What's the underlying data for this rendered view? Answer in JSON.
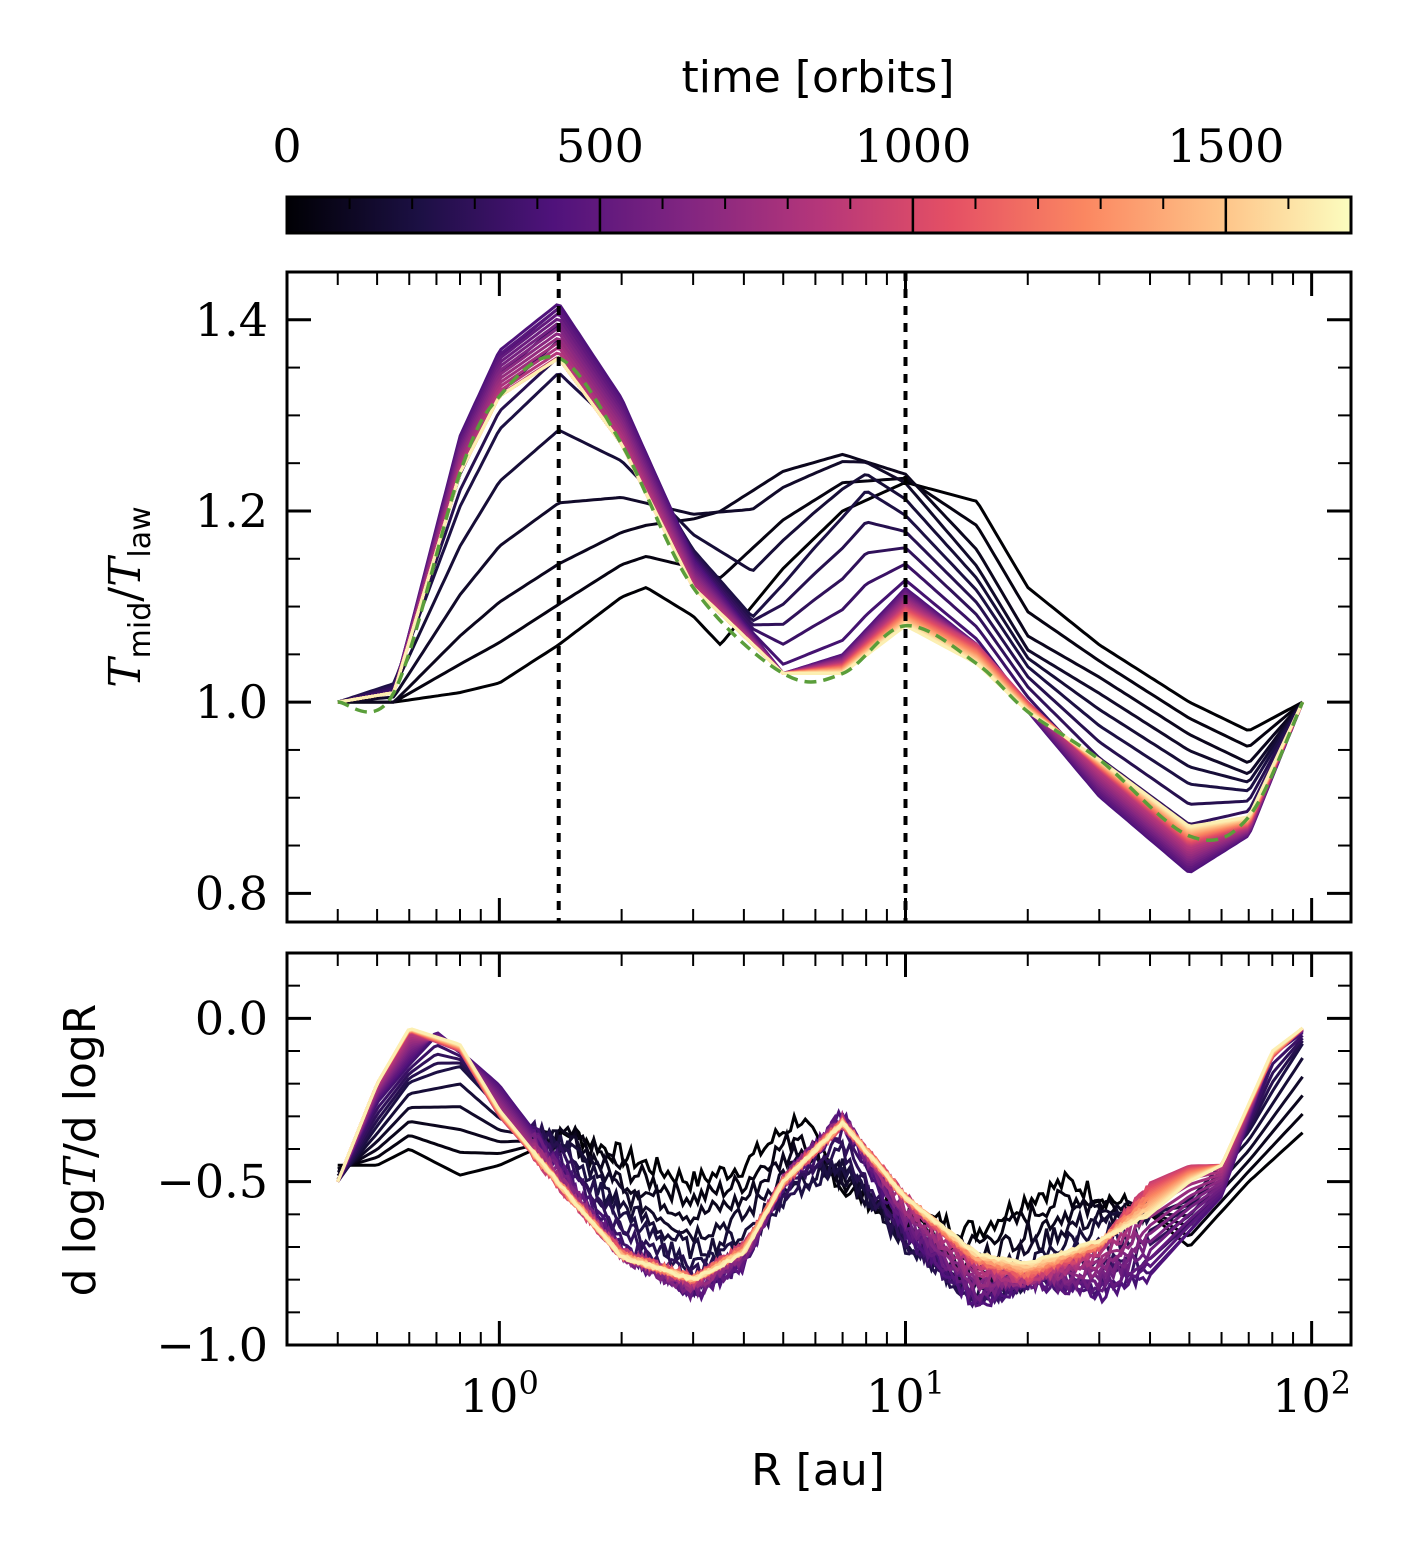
{
  "colorbar": {
    "label": "time [orbits]",
    "ticks": [
      0,
      500,
      1000,
      1500
    ],
    "range": [
      0,
      1700
    ],
    "colormap": "magma",
    "colormap_stops": [
      "#000004",
      "#1c1044",
      "#4f127b",
      "#812581",
      "#b5367a",
      "#e55064",
      "#fb8761",
      "#fec287",
      "#fcfdbf"
    ]
  },
  "guides": {
    "vlines_au": [
      1.4,
      10.0
    ],
    "reference_curve_color": "#5a9e3a"
  },
  "chart_data": [
    {
      "type": "line",
      "panel": "top",
      "title": "",
      "xlabel": "",
      "ylabel_parts": {
        "main": "T",
        "sub1": "mid",
        "slash": "/",
        "main2": "T",
        "sub2": "law"
      },
      "xscale": "log",
      "xlim": [
        0.3,
        125
      ],
      "ylim": [
        0.77,
        1.45
      ],
      "yticks": [
        "0.8",
        "1.0",
        "1.2",
        "1.4"
      ],
      "ytick_values": [
        0.8,
        1.0,
        1.2,
        1.4
      ],
      "n_curves": 40,
      "series": [
        {
          "name": "t=0",
          "time": 0,
          "x": [
            0.4,
            0.55,
            0.8,
            1.0,
            1.4,
            2.0,
            2.3,
            3.0,
            3.5,
            5.0,
            7.0,
            10,
            15,
            20,
            30,
            50,
            70,
            95
          ],
          "y": [
            1.0,
            1.0,
            1.01,
            1.02,
            1.06,
            1.11,
            1.12,
            1.09,
            1.06,
            1.14,
            1.2,
            1.23,
            1.21,
            1.12,
            1.06,
            1.0,
            0.97,
            1.0
          ]
        },
        {
          "name": "t=100",
          "time": 100,
          "x": [
            0.4,
            0.55,
            0.8,
            1.0,
            1.4,
            2.0,
            3.0,
            5.0,
            7.0,
            10,
            15,
            20,
            30,
            50,
            70,
            95
          ],
          "y": [
            1.0,
            1.0,
            1.08,
            1.12,
            1.16,
            1.19,
            1.21,
            1.26,
            1.27,
            1.24,
            1.15,
            1.06,
            1.02,
            0.96,
            0.93,
            1.0
          ]
        },
        {
          "name": "t=200",
          "time": 200,
          "x": [
            0.4,
            0.55,
            0.8,
            1.0,
            1.4,
            2.0,
            3.0,
            4.2,
            6.0,
            8.0,
            10,
            15,
            20,
            30,
            50,
            70,
            95
          ],
          "y": [
            1.0,
            1.02,
            1.2,
            1.28,
            1.34,
            1.28,
            1.16,
            1.09,
            1.17,
            1.23,
            1.2,
            1.12,
            1.04,
            0.98,
            0.92,
            0.91,
            1.0
          ]
        },
        {
          "name": "t=400",
          "time": 400,
          "x": [
            0.4,
            0.55,
            0.8,
            1.0,
            1.4,
            2.0,
            3.0,
            5.0,
            7.0,
            10,
            15,
            20,
            30,
            50,
            70,
            95
          ],
          "y": [
            1.0,
            1.01,
            1.28,
            1.37,
            1.42,
            1.32,
            1.15,
            1.03,
            1.05,
            1.12,
            1.06,
            0.99,
            0.9,
            0.82,
            0.86,
            1.0
          ]
        },
        {
          "name": "t=900",
          "time": 900,
          "x": [
            0.4,
            0.55,
            0.8,
            1.0,
            1.4,
            2.0,
            3.0,
            5.0,
            7.0,
            10,
            15,
            20,
            30,
            50,
            70,
            95
          ],
          "y": [
            1.0,
            1.01,
            1.24,
            1.32,
            1.36,
            1.27,
            1.12,
            1.03,
            1.04,
            1.1,
            1.06,
            1.0,
            0.93,
            0.85,
            0.87,
            1.0
          ]
        },
        {
          "name": "t=1650",
          "time": 1650,
          "x": [
            0.4,
            0.55,
            0.8,
            1.0,
            1.4,
            2.0,
            3.0,
            5.0,
            7.0,
            10,
            15,
            20,
            30,
            50,
            70,
            95
          ],
          "y": [
            1.0,
            1.01,
            1.24,
            1.32,
            1.36,
            1.27,
            1.12,
            1.03,
            1.03,
            1.08,
            1.04,
            0.99,
            0.94,
            0.87,
            0.88,
            1.0
          ]
        },
        {
          "name": "reference (dashed)",
          "time": null,
          "x": [
            0.4,
            0.55,
            0.8,
            1.0,
            1.4,
            2.0,
            3.0,
            5.0,
            7.0,
            10,
            15,
            20,
            30,
            50,
            70,
            95
          ],
          "y": [
            1.0,
            1.01,
            1.24,
            1.32,
            1.36,
            1.27,
            1.12,
            1.03,
            1.03,
            1.08,
            1.04,
            0.99,
            0.94,
            0.86,
            0.88,
            1.0
          ]
        }
      ]
    },
    {
      "type": "line",
      "panel": "bottom",
      "title": "",
      "xlabel": "R [au]",
      "ylabel_parts": {
        "prefix": "d log",
        "var": "T",
        "suffix": "/d logR"
      },
      "xscale": "log",
      "xlim": [
        0.3,
        125
      ],
      "ylim": [
        -1.0,
        0.2
      ],
      "yticks": [
        "0.0",
        "−0.5",
        "−1.0"
      ],
      "ytick_values": [
        0.0,
        -0.5,
        -1.0
      ],
      "xticks": [
        1,
        10,
        100
      ],
      "xtick_base": "10",
      "xtick_exponents": [
        "0",
        "1",
        "2"
      ],
      "n_curves": 40,
      "series": [
        {
          "name": "t=0",
          "time": 0,
          "x": [
            0.4,
            0.5,
            0.6,
            0.8,
            1.0,
            1.5,
            2.0,
            3.0,
            4.0,
            5.5,
            7.0,
            10,
            15,
            20,
            25,
            40,
            50,
            70,
            95
          ],
          "y": [
            -0.45,
            -0.45,
            -0.4,
            -0.48,
            -0.45,
            -0.35,
            -0.42,
            -0.5,
            -0.45,
            -0.3,
            -0.52,
            -0.6,
            -0.65,
            -0.55,
            -0.5,
            -0.6,
            -0.7,
            -0.5,
            -0.35
          ]
        },
        {
          "name": "t=200",
          "time": 200,
          "x": [
            0.4,
            0.6,
            0.8,
            1.0,
            1.5,
            2.0,
            3.0,
            4.0,
            5.0,
            7.0,
            10,
            15,
            20,
            30,
            50,
            70,
            95
          ],
          "y": [
            -0.5,
            -0.2,
            -0.15,
            -0.28,
            -0.4,
            -0.6,
            -0.75,
            -0.7,
            -0.55,
            -0.45,
            -0.7,
            -0.85,
            -0.8,
            -0.65,
            -0.55,
            -0.35,
            -0.08
          ]
        },
        {
          "name": "t=400",
          "time": 400,
          "x": [
            0.4,
            0.5,
            0.7,
            1.0,
            1.5,
            2.0,
            3.0,
            4.0,
            5.0,
            7.0,
            10,
            15,
            20,
            30,
            40,
            60,
            80,
            95
          ],
          "y": [
            -0.5,
            -0.25,
            -0.04,
            -0.2,
            -0.5,
            -0.72,
            -0.85,
            -0.75,
            -0.5,
            -0.3,
            -0.65,
            -0.88,
            -0.8,
            -0.85,
            -0.8,
            -0.55,
            -0.1,
            -0.04
          ]
        },
        {
          "name": "t=900",
          "time": 900,
          "x": [
            0.4,
            0.5,
            0.6,
            0.8,
            1.0,
            1.5,
            2.0,
            3.0,
            4.0,
            5.0,
            7.0,
            10,
            15,
            20,
            30,
            40,
            50,
            60,
            80,
            95
          ],
          "y": [
            -0.5,
            -0.2,
            -0.04,
            -0.1,
            -0.3,
            -0.55,
            -0.72,
            -0.8,
            -0.7,
            -0.5,
            -0.32,
            -0.55,
            -0.75,
            -0.8,
            -0.7,
            -0.5,
            -0.45,
            -0.45,
            -0.12,
            -0.03
          ]
        },
        {
          "name": "t=1650",
          "time": 1650,
          "x": [
            0.4,
            0.5,
            0.6,
            0.8,
            1.0,
            1.5,
            2.0,
            3.0,
            4.0,
            5.0,
            7.0,
            10,
            15,
            20,
            30,
            40,
            50,
            60,
            80,
            95
          ],
          "y": [
            -0.5,
            -0.2,
            -0.03,
            -0.08,
            -0.28,
            -0.55,
            -0.73,
            -0.8,
            -0.72,
            -0.5,
            -0.32,
            -0.55,
            -0.72,
            -0.75,
            -0.68,
            -0.6,
            -0.5,
            -0.45,
            -0.1,
            -0.03
          ]
        }
      ]
    }
  ]
}
